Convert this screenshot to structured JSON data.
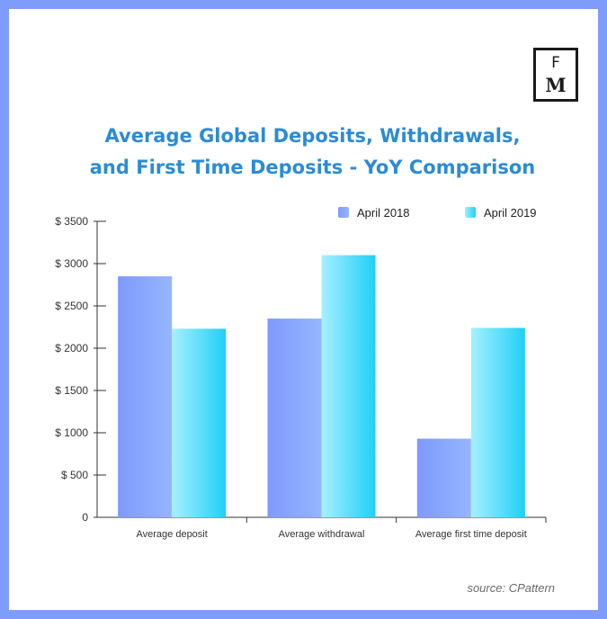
{
  "logo": {
    "line1": "F",
    "line2": "M"
  },
  "title_lines": [
    "Average Global Deposits, Withdrawals,",
    "and First Time Deposits - YoY Comparison"
  ],
  "source": "source: CPattern",
  "colors": {
    "frame": "#7e9cfb",
    "title": "#2c8bd4",
    "april_2018": "#8aa8fe",
    "april_2019": "#3fd8f8"
  },
  "chart_data": {
    "type": "bar",
    "title": "Average Global Deposits, Withdrawals, and First Time Deposits - YoY Comparison",
    "categories": [
      "Average deposit",
      "Average withdrawal",
      "Average first time deposit"
    ],
    "series": [
      {
        "name": "April 2018",
        "values": [
          2850,
          2350,
          930
        ]
      },
      {
        "name": "April 2019",
        "values": [
          2230,
          3100,
          2240
        ]
      }
    ],
    "y_ticks": [
      0,
      500,
      1000,
      1500,
      2000,
      2500,
      3000,
      3500
    ],
    "y_tick_labels": [
      "0",
      "$ 500",
      "$ 1000",
      "$ 1500",
      "$ 2000",
      "$ 2500",
      "$ 3000",
      "$ 3500"
    ],
    "ylim": [
      0,
      3500
    ],
    "xlabel": "",
    "ylabel": "",
    "grid": false,
    "legend_position": "top-right"
  }
}
